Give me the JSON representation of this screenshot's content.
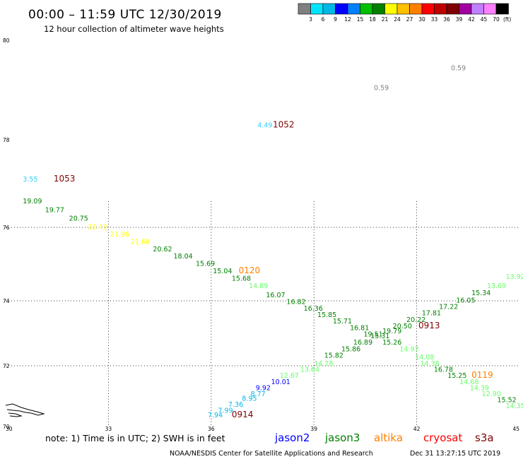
{
  "header": {
    "title": "00:00  –  11:59 UTC 12/30/2019",
    "subtitle": "12 hour collection of altimeter wave heights"
  },
  "color_scale": {
    "thresholds": [
      "3",
      "6",
      "9",
      "12",
      "15",
      "18",
      "21",
      "24",
      "27",
      "30",
      "33",
      "36",
      "39",
      "42",
      "45",
      "70"
    ],
    "unit": "(ft)",
    "colors": [
      "#808080",
      "#00e5ff",
      "#00b8e6",
      "#0000ff",
      "#0080ff",
      "#00c000",
      "#008000",
      "#ffff00",
      "#ffc000",
      "#ff8000",
      "#ff0000",
      "#c00000",
      "#800000",
      "#a000a0",
      "#c080ff",
      "#ff80ff",
      "#000000"
    ]
  },
  "axes": {
    "x_labels": [
      "30",
      "33",
      "36",
      "39",
      "42",
      "45"
    ],
    "y_labels": [
      "70",
      "72",
      "74",
      "76",
      "78",
      "80"
    ]
  },
  "swh_values": [
    {
      "text": "0.59",
      "color": "#808080",
      "lon": 43.0,
      "lat": 79.4
    },
    {
      "text": "0.59",
      "color": "#808080",
      "lon": 40.75,
      "lat": 79.0
    },
    {
      "text": "4.49",
      "color": "#33ccff",
      "lon": 37.35,
      "lat": 78.25
    },
    {
      "text": "3.55",
      "color": "#33ccff",
      "lon": 30.5,
      "lat": 77.05
    },
    {
      "text": "19.09",
      "color": "#008000",
      "lon": 30.5,
      "lat": 76.55
    },
    {
      "text": "19.77",
      "color": "#008000",
      "lon": 31.15,
      "lat": 76.35
    },
    {
      "text": "20.75",
      "color": "#008000",
      "lon": 31.85,
      "lat": 76.15
    },
    {
      "text": "22.43",
      "color": "#ffff00",
      "lon": 32.4,
      "lat": 75.95
    },
    {
      "text": "21.96",
      "color": "#ffff00",
      "lon": 33.05,
      "lat": 75.75
    },
    {
      "text": "21.68",
      "color": "#ffff00",
      "lon": 33.65,
      "lat": 75.55
    },
    {
      "text": "20.62",
      "color": "#008000",
      "lon": 34.3,
      "lat": 75.35
    },
    {
      "text": "18.04",
      "color": "#008000",
      "lon": 34.9,
      "lat": 75.15
    },
    {
      "text": "15.69",
      "color": "#008000",
      "lon": 35.55,
      "lat": 74.95
    },
    {
      "text": "15.04",
      "color": "#008000",
      "lon": 36.05,
      "lat": 74.75
    },
    {
      "text": "15.68",
      "color": "#008000",
      "lon": 36.6,
      "lat": 74.55
    },
    {
      "text": "14.89",
      "color": "#66ff66",
      "lon": 37.1,
      "lat": 74.35
    },
    {
      "text": "16.07",
      "color": "#008000",
      "lon": 37.6,
      "lat": 74.1
    },
    {
      "text": "16.82",
      "color": "#008000",
      "lon": 38.2,
      "lat": 73.9
    },
    {
      "text": "16.36",
      "color": "#008000",
      "lon": 38.7,
      "lat": 73.7
    },
    {
      "text": "15.85",
      "color": "#008000",
      "lon": 39.1,
      "lat": 73.5
    },
    {
      "text": "15.71",
      "color": "#008000",
      "lon": 39.55,
      "lat": 73.3
    },
    {
      "text": "16.81",
      "color": "#008000",
      "lon": 40.05,
      "lat": 73.1
    },
    {
      "text": "19.51",
      "color": "#008000",
      "lon": 40.45,
      "lat": 72.9
    },
    {
      "text": "19.79",
      "color": "#008000",
      "lon": 41.0,
      "lat": 73.0
    },
    {
      "text": "15.31",
      "color": "#008000",
      "lon": 40.65,
      "lat": 72.85
    },
    {
      "text": "15.26",
      "color": "#008000",
      "lon": 41.0,
      "lat": 72.65
    },
    {
      "text": "16.89",
      "color": "#008000",
      "lon": 40.15,
      "lat": 72.65
    },
    {
      "text": "15.86",
      "color": "#008000",
      "lon": 39.8,
      "lat": 72.45
    },
    {
      "text": "15.82",
      "color": "#008000",
      "lon": 39.3,
      "lat": 72.25
    },
    {
      "text": "14.28",
      "color": "#66ff66",
      "lon": 39.0,
      "lat": 72.0
    },
    {
      "text": "13.64",
      "color": "#66ff66",
      "lon": 38.6,
      "lat": 71.8
    },
    {
      "text": "12.67",
      "color": "#66ff66",
      "lon": 38.0,
      "lat": 71.6
    },
    {
      "text": "10.01",
      "color": "#0000ff",
      "lon": 37.75,
      "lat": 71.4
    },
    {
      "text": "9.92",
      "color": "#0000ff",
      "lon": 37.3,
      "lat": 71.2
    },
    {
      "text": "8.77",
      "color": "#00b8e6",
      "lon": 37.15,
      "lat": 71.0
    },
    {
      "text": "8.95",
      "color": "#00b8e6",
      "lon": 36.9,
      "lat": 70.85
    },
    {
      "text": "7.36",
      "color": "#00b8e6",
      "lon": 36.5,
      "lat": 70.65
    },
    {
      "text": "7.99",
      "color": "#00b8e6",
      "lon": 36.2,
      "lat": 70.45
    },
    {
      "text": "7.94",
      "color": "#00b8e6",
      "lon": 35.9,
      "lat": 70.3
    },
    {
      "text": "20.50",
      "color": "#008000",
      "lon": 41.3,
      "lat": 73.15
    },
    {
      "text": "20.22",
      "color": "#008000",
      "lon": 41.7,
      "lat": 73.35
    },
    {
      "text": "17.81",
      "color": "#008000",
      "lon": 42.15,
      "lat": 73.55
    },
    {
      "text": "17.22",
      "color": "#008000",
      "lon": 42.65,
      "lat": 73.75
    },
    {
      "text": "16.05",
      "color": "#008000",
      "lon": 43.15,
      "lat": 73.95
    },
    {
      "text": "15.34",
      "color": "#008000",
      "lon": 43.6,
      "lat": 74.15
    },
    {
      "text": "13.69",
      "color": "#66ff66",
      "lon": 44.05,
      "lat": 74.35
    },
    {
      "text": "13.92",
      "color": "#66ff66",
      "lon": 44.6,
      "lat": 74.6
    },
    {
      "text": "14.97",
      "color": "#66ff66",
      "lon": 41.5,
      "lat": 72.45
    },
    {
      "text": "14.08",
      "color": "#66ff66",
      "lon": 41.95,
      "lat": 72.2
    },
    {
      "text": "14.38",
      "color": "#66ff66",
      "lon": 42.1,
      "lat": 72.0
    },
    {
      "text": "16.78",
      "color": "#008000",
      "lon": 42.5,
      "lat": 71.8
    },
    {
      "text": "15.25",
      "color": "#008000",
      "lon": 42.9,
      "lat": 71.6
    },
    {
      "text": "14.68",
      "color": "#66ff66",
      "lon": 43.25,
      "lat": 71.4
    },
    {
      "text": "14.39",
      "color": "#66ff66",
      "lon": 43.55,
      "lat": 71.2
    },
    {
      "text": "12.90",
      "color": "#66ff66",
      "lon": 43.9,
      "lat": 71.0
    },
    {
      "text": "15.52",
      "color": "#008000",
      "lon": 44.35,
      "lat": 70.8
    },
    {
      "text": "14.35",
      "color": "#66ff66",
      "lon": 44.6,
      "lat": 70.6
    }
  ],
  "time_labels": [
    {
      "text": "1052",
      "color": "#800000",
      "lon": 37.8,
      "lat": 78.25
    },
    {
      "text": "1053",
      "color": "#800000",
      "lon": 31.4,
      "lat": 77.05
    },
    {
      "text": "0120",
      "color": "#ff8000",
      "lon": 36.8,
      "lat": 74.75
    },
    {
      "text": "0913",
      "color": "#800000",
      "lon": 42.05,
      "lat": 73.15
    },
    {
      "text": "0119",
      "color": "#ff8000",
      "lon": 43.6,
      "lat": 71.6
    },
    {
      "text": "0914",
      "color": "#800000",
      "lon": 36.6,
      "lat": 70.3
    }
  ],
  "footer": {
    "note": "note:  1) Time is in UTC; 2) SWH is in feet",
    "satellites": [
      {
        "name": "jason2",
        "color": "#0000ff"
      },
      {
        "name": "jason3",
        "color": "#008000"
      },
      {
        "name": "altika",
        "color": "#ff8000"
      },
      {
        "name": "cryosat",
        "color": "#ff0000"
      },
      {
        "name": "s3a",
        "color": "#800000"
      }
    ],
    "credit": "NOAA/NESDIS Center for Satellite Applications and Research",
    "timestamp": "Dec 31 13:27:15 UTC 2019"
  }
}
